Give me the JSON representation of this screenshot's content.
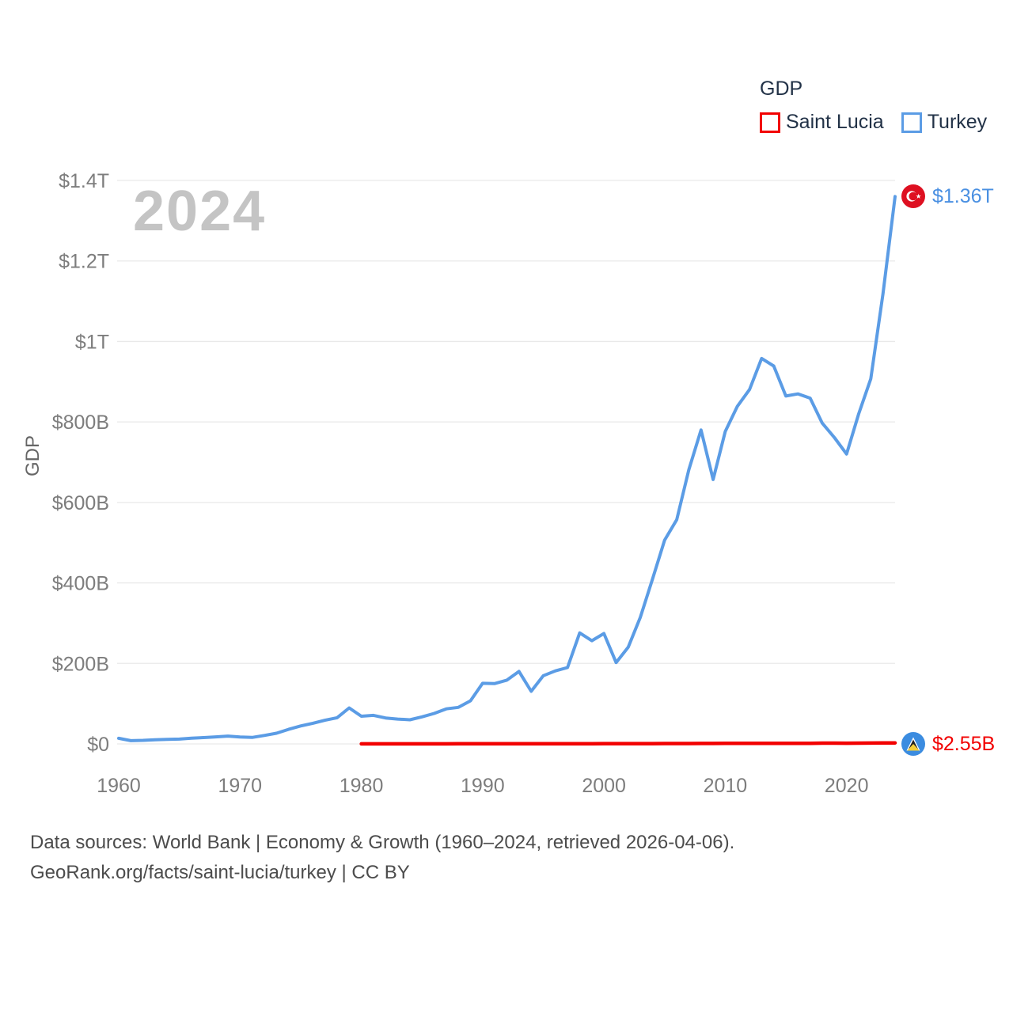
{
  "legend": {
    "title": "GDP",
    "items": [
      {
        "label": "Saint Lucia",
        "color": "#f20000"
      },
      {
        "label": "Turkey",
        "color": "#5b9ce5"
      }
    ]
  },
  "watermark_year": "2024",
  "badges": {
    "turkey": {
      "value": "$1.36T",
      "color": "#4a90e2",
      "flag": "turkey-flag"
    },
    "saint_lucia": {
      "value": "$2.55B",
      "color": "#f20000",
      "flag": "saint-lucia-flag"
    }
  },
  "footer": {
    "line1": "Data sources: World Bank | Economy & Growth (1960–2024, retrieved 2026-04-06).",
    "line2": "GeoRank.org/facts/saint-lucia/turkey | CC BY"
  },
  "chart_data": {
    "type": "line",
    "title": "",
    "xlabel": "",
    "ylabel": "GDP",
    "units": "USD, billions",
    "xlim": [
      1960,
      2024
    ],
    "ylim_billions": [
      0,
      1400
    ],
    "grid": "horizontal",
    "legend_position": "top-right",
    "x_ticks": [
      1960,
      1970,
      1980,
      1990,
      2000,
      2010,
      2020
    ],
    "y_ticks": [
      {
        "label": "$0",
        "value": 0
      },
      {
        "label": "$200B",
        "value": 200
      },
      {
        "label": "$400B",
        "value": 400
      },
      {
        "label": "$600B",
        "value": 600
      },
      {
        "label": "$800B",
        "value": 800
      },
      {
        "label": "$1T",
        "value": 1000
      },
      {
        "label": "$1.2T",
        "value": 1200
      },
      {
        "label": "$1.4T",
        "value": 1400
      }
    ],
    "series": [
      {
        "name": "Saint Lucia",
        "color": "#f20000",
        "stroke_width": 4.5,
        "end_label": "$2.55B",
        "start_year": 1980,
        "values_billions": [
          0.13,
          0.15,
          0.16,
          0.17,
          0.19,
          0.24,
          0.26,
          0.28,
          0.32,
          0.34,
          0.4,
          0.43,
          0.47,
          0.49,
          0.51,
          0.55,
          0.58,
          0.59,
          0.62,
          0.68,
          0.78,
          0.72,
          0.72,
          0.78,
          0.84,
          0.93,
          1.02,
          1.08,
          1.14,
          1.14,
          1.4,
          1.41,
          1.42,
          1.44,
          1.48,
          1.52,
          1.57,
          1.66,
          1.88,
          1.9,
          1.71,
          1.95,
          2.2,
          2.43,
          2.55
        ]
      },
      {
        "name": "Turkey",
        "color": "#5b9ce5",
        "stroke_width": 4,
        "end_label": "$1.36T",
        "start_year": 1960,
        "values_billions": [
          14.0,
          8.0,
          8.9,
          10.4,
          11.2,
          11.9,
          14.1,
          15.8,
          17.5,
          19.5,
          17.1,
          16.2,
          21.1,
          26.6,
          36.2,
          44.6,
          51.3,
          58.7,
          65.1,
          89.4,
          68.8,
          71.0,
          64.5,
          61.7,
          60.0,
          67.2,
          75.7,
          87.2,
          90.8,
          107.1,
          150.7,
          150.0,
          158.5,
          180.2,
          130.7,
          169.5,
          181.5,
          189.8,
          275.8,
          256.4,
          274.3,
          202.1,
          240.2,
          314.6,
          408.9,
          506.3,
          557.1,
          681.3,
          780.0,
          657.0,
          776.0,
          838.8,
          880.6,
          957.8,
          938.9,
          864.3,
          869.7,
          859.0,
          797.0,
          761.0,
          720.3,
          819.9,
          907.1,
          1118.3,
          1360.0
        ]
      }
    ]
  }
}
